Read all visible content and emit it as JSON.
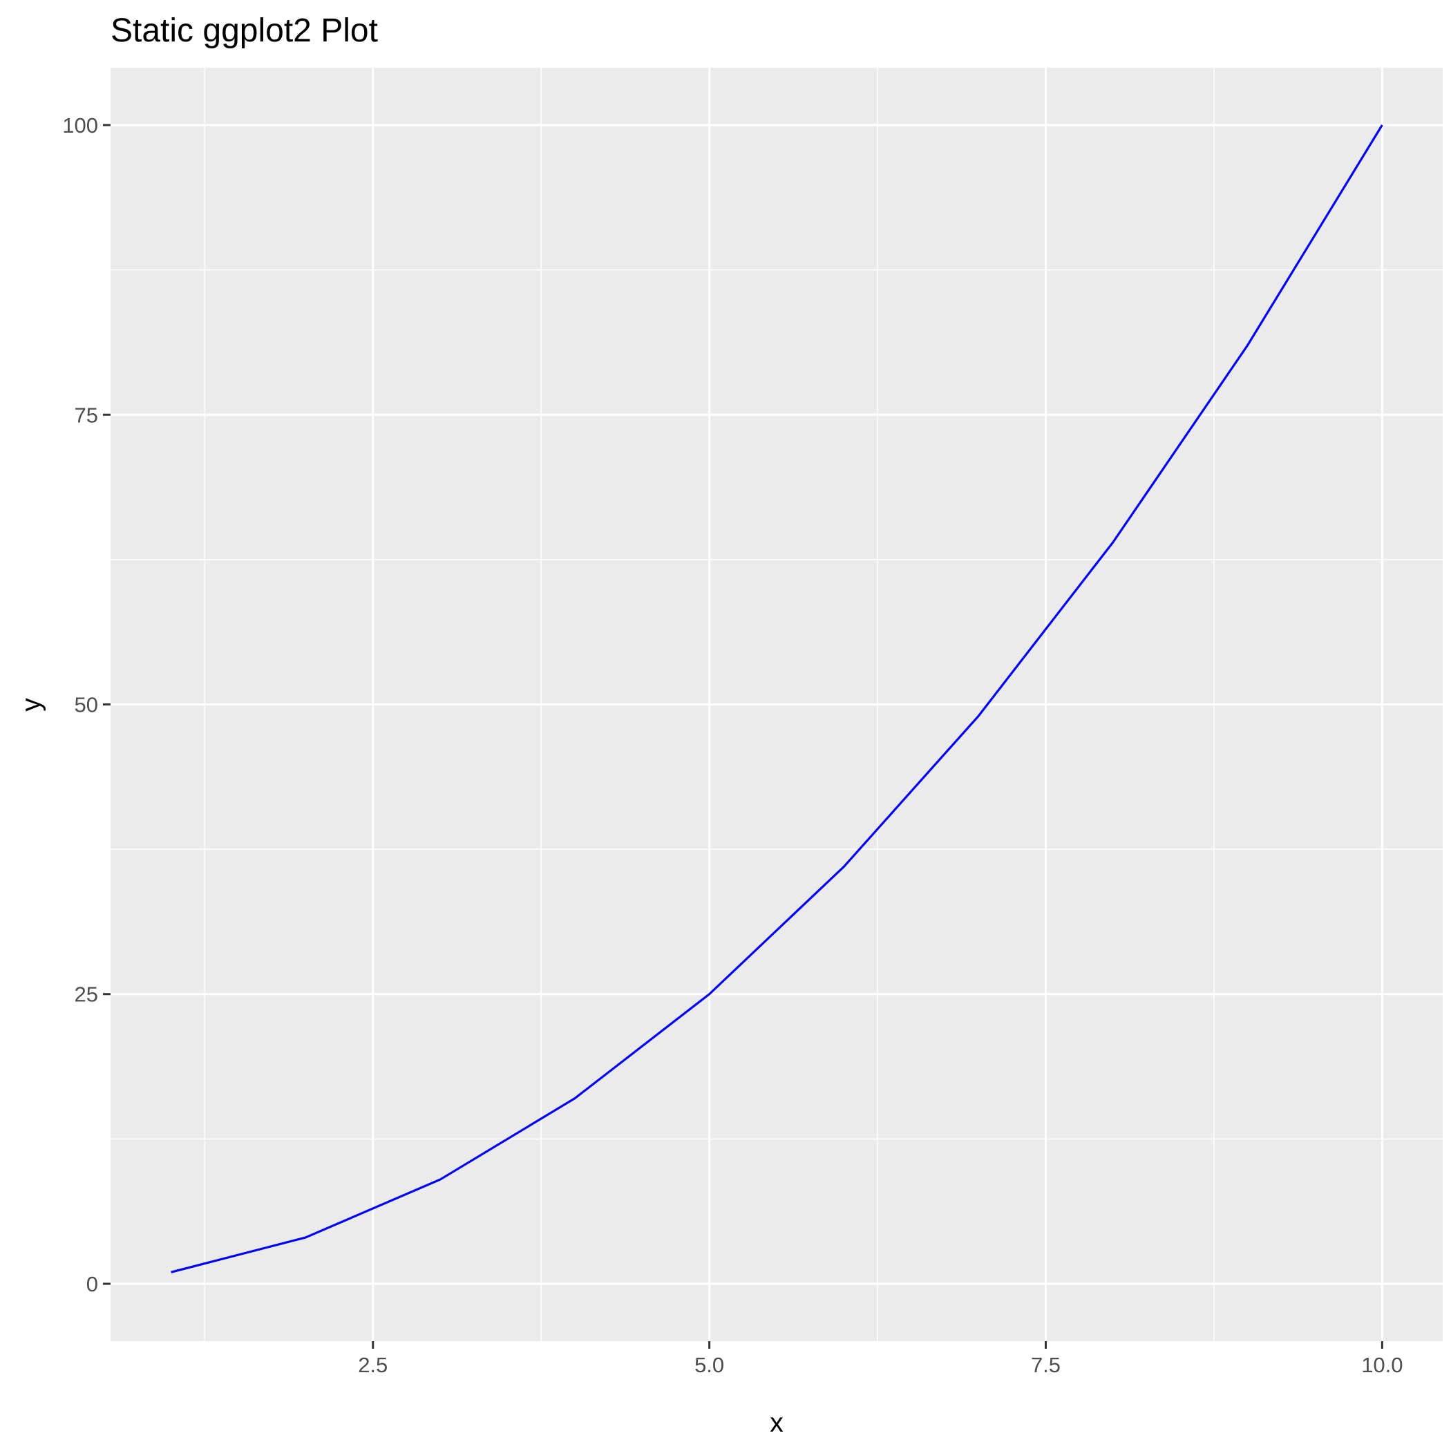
{
  "chart_data": {
    "type": "line",
    "title": "Static ggplot2 Plot",
    "xlabel": "x",
    "ylabel": "y",
    "x": [
      1,
      2,
      3,
      4,
      5,
      6,
      7,
      8,
      9,
      10
    ],
    "series": [
      {
        "values": [
          1,
          4,
          9,
          16,
          25,
          36,
          49,
          64,
          81,
          100
        ],
        "color": "#0000ff"
      }
    ],
    "xlim": [
      0.55,
      10.45
    ],
    "ylim": [
      -4.95,
      104.95
    ],
    "x_ticks": [
      2.5,
      5.0,
      7.5,
      10.0
    ],
    "x_tick_labels": [
      "2.5",
      "5.0",
      "7.5",
      "10.0"
    ],
    "y_ticks": [
      0,
      25,
      50,
      75,
      100
    ],
    "y_tick_labels": [
      "0",
      "25",
      "50",
      "75",
      "100"
    ],
    "x_minor_ticks": [
      1.25,
      3.75,
      6.25,
      8.75
    ],
    "y_minor_ticks": [
      12.5,
      37.5,
      62.5,
      87.5
    ],
    "grid": true,
    "legend": "none",
    "panel_background": "#ebebeb",
    "grid_color": "#ffffff",
    "axis_tick_color": "#333333"
  }
}
